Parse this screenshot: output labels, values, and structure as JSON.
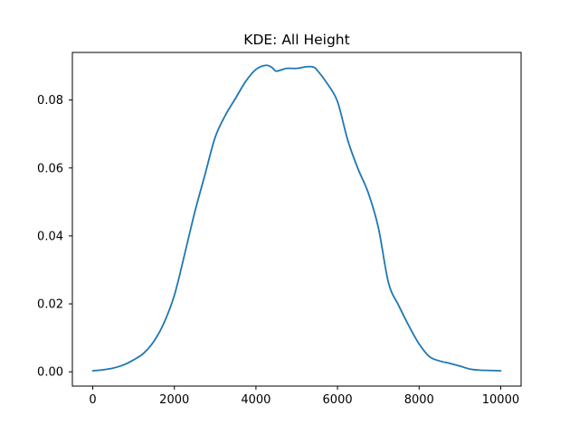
{
  "chart_data": {
    "type": "line",
    "title": "KDE: All Height",
    "xlabel": "",
    "ylabel": "",
    "xlim": [
      -500,
      10500
    ],
    "ylim": [
      -0.0042,
      0.094
    ],
    "xticks": [
      0,
      2000,
      4000,
      6000,
      8000,
      10000
    ],
    "xtick_labels": [
      "0",
      "2000",
      "4000",
      "6000",
      "8000",
      "10000"
    ],
    "yticks": [
      0.0,
      0.02,
      0.04,
      0.06,
      0.08
    ],
    "ytick_labels": [
      "0.00",
      "0.02",
      "0.04",
      "0.06",
      "0.08"
    ],
    "grid": false,
    "legend": "none",
    "series": [
      {
        "color": "#1f77b4",
        "x": [
          0,
          250,
          500,
          750,
          1000,
          1250,
          1500,
          1750,
          2000,
          2250,
          2500,
          2750,
          3000,
          3250,
          3500,
          3750,
          4000,
          4250,
          4400,
          4500,
          4750,
          5000,
          5250,
          5400,
          5500,
          5750,
          6000,
          6250,
          6500,
          6750,
          7000,
          7250,
          7500,
          7750,
          8000,
          8250,
          8500,
          8750,
          9000,
          9250,
          9500,
          9750,
          10000
        ],
        "values": [
          0.0003,
          0.0006,
          0.0011,
          0.002,
          0.0035,
          0.0055,
          0.009,
          0.0145,
          0.0225,
          0.0345,
          0.047,
          0.058,
          0.069,
          0.0755,
          0.0805,
          0.0855,
          0.089,
          0.0902,
          0.0895,
          0.0885,
          0.0893,
          0.0893,
          0.0898,
          0.0897,
          0.0888,
          0.0848,
          0.0795,
          0.0682,
          0.0598,
          0.0528,
          0.0425,
          0.0262,
          0.0195,
          0.0135,
          0.0082,
          0.0045,
          0.0032,
          0.0025,
          0.0017,
          0.0008,
          0.0005,
          0.0004,
          0.0003
        ]
      }
    ]
  }
}
